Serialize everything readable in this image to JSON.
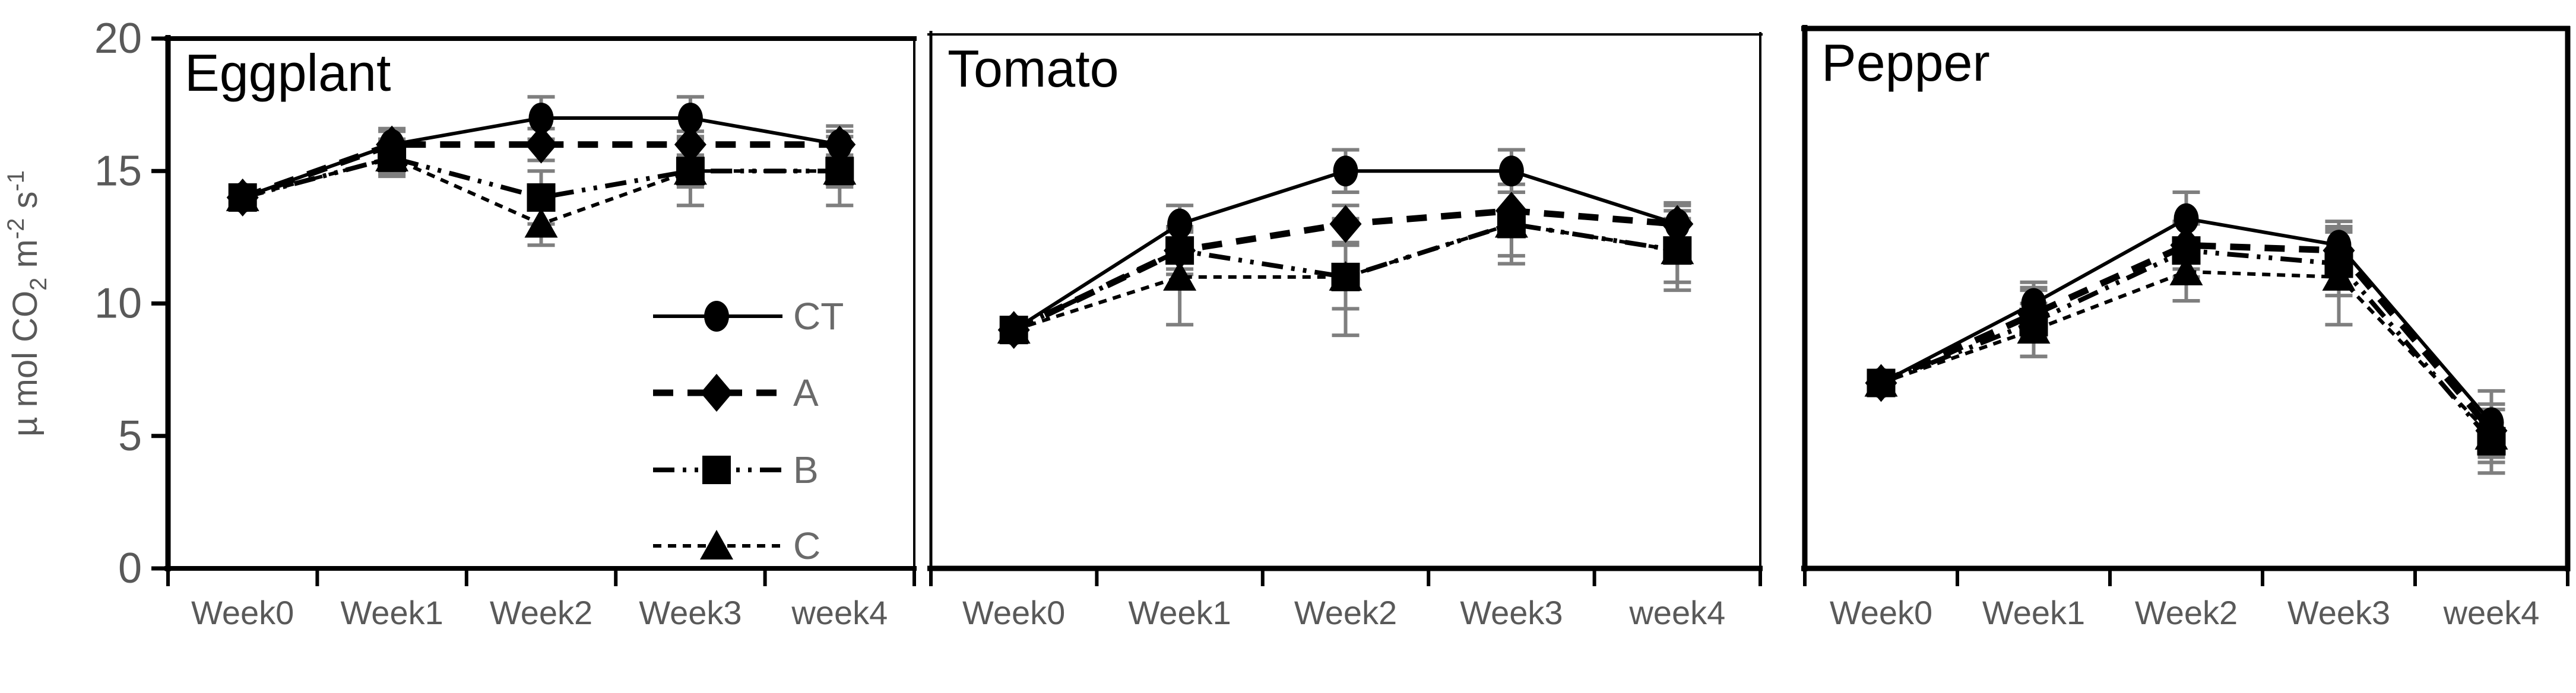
{
  "figure": {
    "background": "#ffffff",
    "axis_color": "#000000",
    "series_color": "#000000",
    "error_bar_color": "#7f7f7f",
    "muted_text_color": "#595959",
    "legend_text_color": "#6a6a6a",
    "title_color": "#000000",
    "y_axis": {
      "ticks": [
        "0",
        "5",
        "10",
        "15",
        "20"
      ],
      "range": [
        0,
        20
      ],
      "label": "µ mol CO2 m-2 s-1",
      "label_parts": [
        {
          "text": "µ mol CO",
          "style": "n"
        },
        {
          "text": "2",
          "style": "sub"
        },
        {
          "text": " m",
          "style": "n"
        },
        {
          "text": "-2",
          "style": "sup"
        },
        {
          "text": " s",
          "style": "n"
        },
        {
          "text": "-1",
          "style": "sup"
        }
      ]
    },
    "x_categories": [
      "Week0",
      "Week1",
      "Week2",
      "Week3",
      "week4"
    ],
    "legend": {
      "items": [
        "CT",
        "A",
        "B",
        "C"
      ]
    }
  },
  "chart_data": [
    {
      "type": "line",
      "title": "Eggplant",
      "x": [
        "Week0",
        "Week1",
        "Week2",
        "Week3",
        "week4"
      ],
      "ylabel": "µ mol CO2 m-2 s-1",
      "ylim": [
        0,
        20
      ],
      "yticks": [
        0,
        5,
        10,
        15,
        20
      ],
      "legend_position": "inside-right",
      "show_legend": true,
      "series": [
        {
          "name": "CT",
          "marker": "circle",
          "line": "solid",
          "values": [
            14,
            16,
            17,
            17,
            16
          ],
          "errors": [
            0.3,
            0.6,
            0.8,
            0.8,
            0.7
          ]
        },
        {
          "name": "A",
          "marker": "diamond",
          "line": "long-dash",
          "values": [
            14,
            16,
            16,
            16,
            16
          ],
          "errors": [
            0.3,
            0.5,
            0.6,
            0.5,
            0.5
          ]
        },
        {
          "name": "B",
          "marker": "square",
          "line": "dash-dot-dot",
          "values": [
            14,
            15.5,
            14,
            15,
            15
          ],
          "errors": [
            0.3,
            0.7,
            1.0,
            1.3,
            1.3
          ]
        },
        {
          "name": "C",
          "marker": "triangle",
          "line": "short-dash",
          "values": [
            14,
            15.5,
            13,
            15,
            15
          ],
          "errors": [
            0.3,
            0.6,
            0.8,
            0.6,
            0.6
          ]
        }
      ]
    },
    {
      "type": "line",
      "title": "Tomato",
      "x": [
        "Week0",
        "Week1",
        "Week2",
        "Week3",
        "week4"
      ],
      "ylim": [
        0,
        20
      ],
      "yticks": [
        0,
        5,
        10,
        15,
        20
      ],
      "show_legend": false,
      "series": [
        {
          "name": "CT",
          "marker": "circle",
          "line": "solid",
          "values": [
            9,
            13,
            15,
            15,
            13
          ],
          "errors": [
            0.3,
            0.7,
            0.8,
            0.8,
            0.8
          ]
        },
        {
          "name": "A",
          "marker": "diamond",
          "line": "long-dash",
          "values": [
            9,
            12,
            13,
            13.5,
            13
          ],
          "errors": [
            0.3,
            0.7,
            0.7,
            0.7,
            0.7
          ]
        },
        {
          "name": "B",
          "marker": "square",
          "line": "dash-dot-dot",
          "values": [
            9,
            12,
            11,
            13,
            12
          ],
          "errors": [
            0.3,
            0.9,
            1.2,
            1.2,
            1.2
          ]
        },
        {
          "name": "C",
          "marker": "triangle",
          "line": "short-dash",
          "values": [
            9,
            11,
            11,
            13,
            12
          ],
          "errors": [
            0.3,
            1.8,
            2.2,
            1.5,
            1.5
          ]
        }
      ]
    },
    {
      "type": "line",
      "title": "Pepper",
      "x": [
        "Week0",
        "Week1",
        "Week2",
        "Week3",
        "week4"
      ],
      "ylim": [
        0,
        20
      ],
      "yticks": [
        0,
        5,
        10,
        15,
        20
      ],
      "show_legend": false,
      "series": [
        {
          "name": "CT",
          "marker": "circle",
          "line": "solid",
          "values": [
            7,
            10,
            13.2,
            12.2,
            5.5
          ],
          "errors": [
            0.4,
            0.8,
            1.0,
            0.9,
            1.2
          ]
        },
        {
          "name": "A",
          "marker": "diamond",
          "line": "long-dash",
          "values": [
            7,
            9.6,
            12.2,
            12,
            5.2
          ],
          "errors": [
            0.4,
            0.9,
            0.9,
            0.9,
            1.0
          ]
        },
        {
          "name": "B",
          "marker": "square",
          "line": "dash-dot-dot",
          "values": [
            7,
            9.3,
            12,
            11.5,
            4.8
          ],
          "errors": [
            0.4,
            1.3,
            1.0,
            1.2,
            1.2
          ]
        },
        {
          "name": "C",
          "marker": "triangle",
          "line": "short-dash",
          "values": [
            7,
            9,
            11.2,
            11,
            5.0
          ],
          "errors": [
            0.4,
            1.0,
            1.1,
            1.8,
            1.0
          ]
        }
      ]
    }
  ]
}
